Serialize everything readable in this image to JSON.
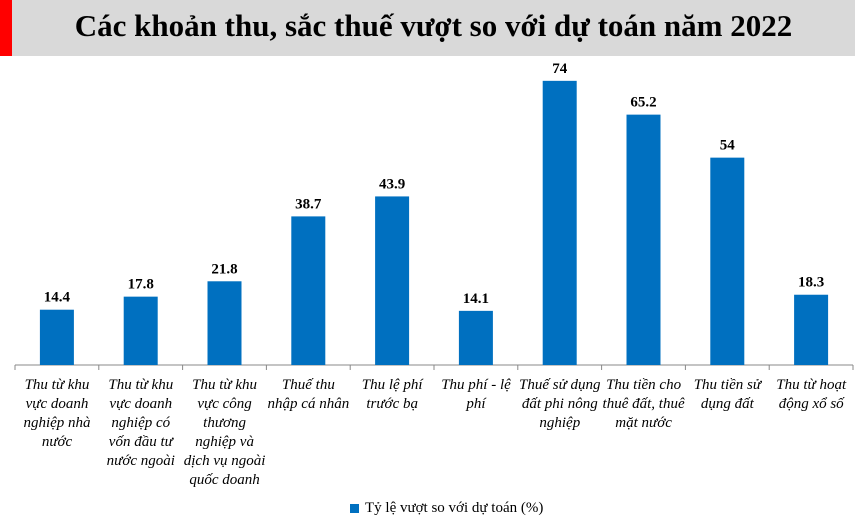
{
  "chart_data": {
    "type": "bar",
    "title": "Các khoản thu, sắc thuế vượt so với dự toán năm 2022",
    "categories": [
      "Thu từ khu vực doanh nghiệp nhà nước",
      "Thu từ khu vực doanh nghiệp có vốn đầu tư nước ngoài",
      "Thu từ khu vực công thương nghiệp và dịch vụ ngoài quốc doanh",
      "Thuế thu nhập cá nhân",
      "Thu lệ phí trước bạ",
      "Thu phí - lệ phí",
      "Thuế sử dụng đất phi nông nghiệp",
      "Thu tiền cho thuê đất, thuê mặt nước",
      "Thu tiền sử dụng đất",
      "Thu từ hoạt động xổ số"
    ],
    "series": [
      {
        "name": "Tỷ lệ vượt so với dự toán (%)",
        "values": [
          14.4,
          17.8,
          21.8,
          38.7,
          43.9,
          14.1,
          74,
          65.2,
          54,
          18.3
        ],
        "color": "#0070c0"
      }
    ],
    "data_labels": [
      "14.4",
      "17.8",
      "21.8",
      "38.7",
      "43.9",
      "14.1",
      "74",
      "65.2",
      "54",
      "18.3"
    ],
    "ylim": [
      0,
      80
    ],
    "grid": false,
    "legend": "bottom",
    "title_bar_color": "#d9d9d9",
    "accent_strip_color": "#ff0000"
  }
}
